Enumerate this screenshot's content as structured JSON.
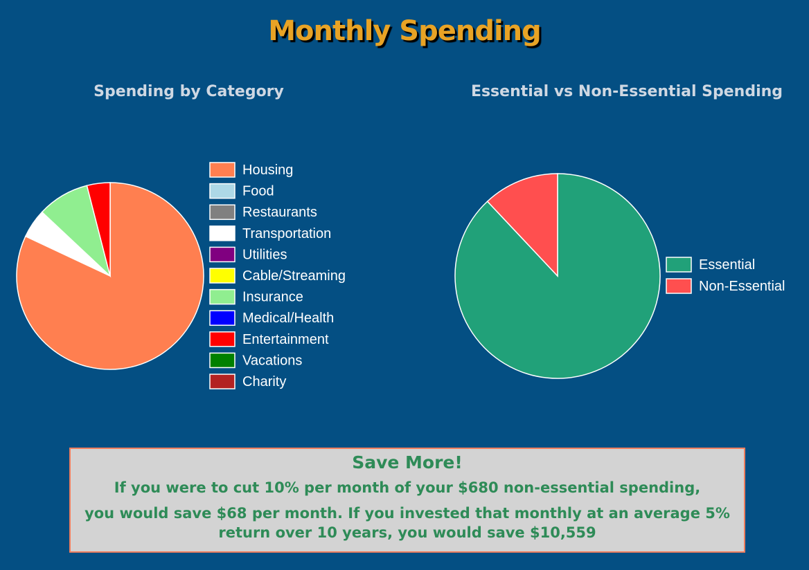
{
  "page": {
    "title": "Monthly Spending"
  },
  "colors": {
    "background": "#044f83",
    "title": "#e8a325",
    "box_background": "#d3d3d3",
    "box_text": "#2e8b57",
    "box_border": "#f07e5e"
  },
  "chart_data": [
    {
      "type": "pie",
      "title": "Spending by Category",
      "legend_position": "right",
      "categories": [
        "Housing",
        "Food",
        "Restaurants",
        "Transportation",
        "Utilities",
        "Cable/Streaming",
        "Insurance",
        "Medical/Health",
        "Entertainment",
        "Vacations",
        "Charity"
      ],
      "values": [
        82,
        0,
        0,
        5,
        0,
        0,
        9,
        0,
        4,
        0,
        0
      ],
      "value_unit": "percent",
      "colors": [
        "#ff7f50",
        "#add8e6",
        "#808080",
        "#ffffff",
        "#800080",
        "#ffff00",
        "#90ee90",
        "#0000ff",
        "#ff0000",
        "#008000",
        "#b22222"
      ]
    },
    {
      "type": "pie",
      "title": "Essential vs Non-Essential Spending",
      "legend_position": "right",
      "categories": [
        "Essential",
        "Non-Essential"
      ],
      "values": [
        88,
        12
      ],
      "value_unit": "percent",
      "colors": [
        "#21a179",
        "#ff4f4f"
      ]
    }
  ],
  "savings": {
    "heading": "Save More!",
    "line1": "If you were to cut 10% per month of your $680 non-essential spending,",
    "line2": "you would save $68 per month. If you invested that monthly at an average 5% return over 10 years, you would save $10,559"
  }
}
